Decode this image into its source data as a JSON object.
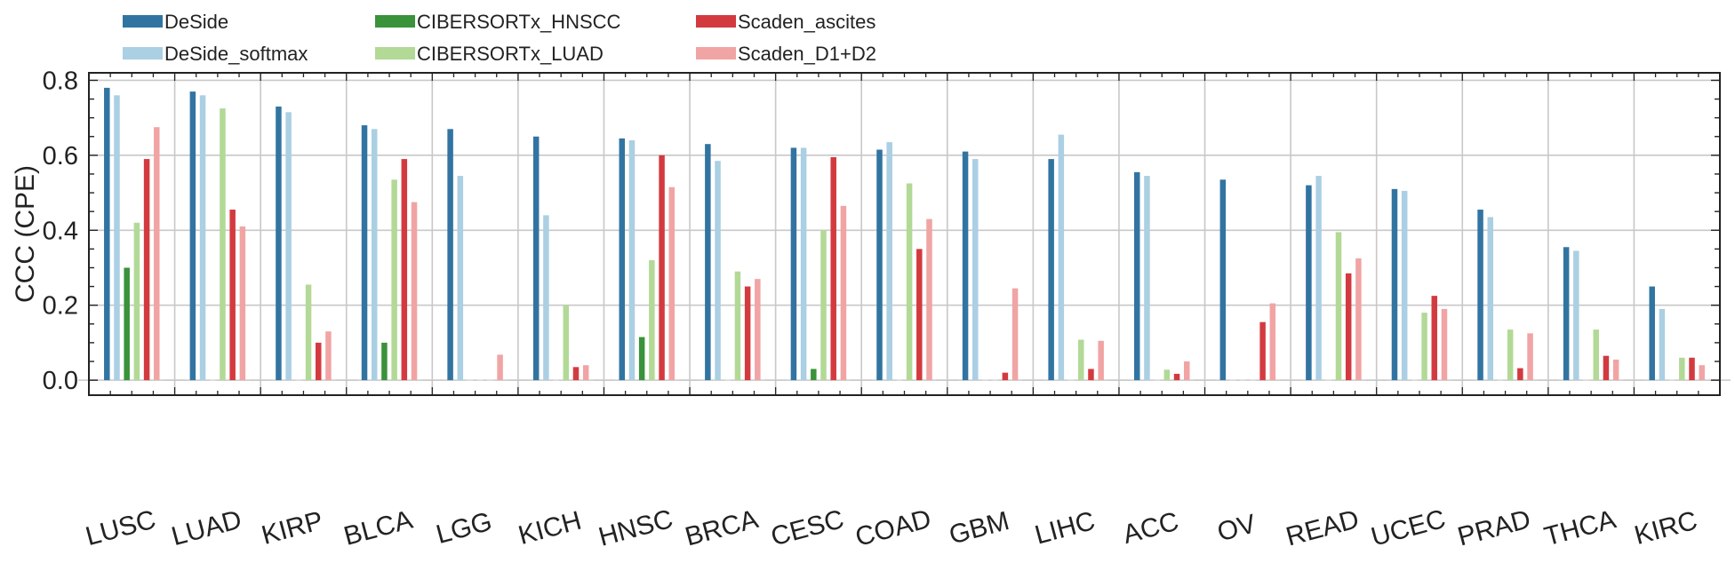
{
  "chart_data": {
    "type": "bar",
    "ylabel": "CCC (CPE)",
    "xlabel": "",
    "ylim": [
      -0.04,
      0.82
    ],
    "yticks": [
      0.0,
      0.2,
      0.4,
      0.6,
      0.8
    ],
    "ytick_labels": [
      "0.0",
      "0.2",
      "0.4",
      "0.6",
      "0.8"
    ],
    "grid": true,
    "legend_position": "top-left, outside plot",
    "categories": [
      "LUSC",
      "LUAD",
      "KIRP",
      "BLCA",
      "LGG",
      "KICH",
      "HNSC",
      "BRCA",
      "CESC",
      "COAD",
      "GBM",
      "LIHC",
      "ACC",
      "OV",
      "READ",
      "UCEC",
      "PRAD",
      "THCA",
      "KIRC"
    ],
    "series": [
      {
        "name": "DeSide",
        "color": "#3274a1",
        "values": [
          0.78,
          0.77,
          0.73,
          0.68,
          0.67,
          0.65,
          0.645,
          0.63,
          0.62,
          0.615,
          0.61,
          0.59,
          0.555,
          0.535,
          0.52,
          0.51,
          0.455,
          0.355,
          0.25
        ]
      },
      {
        "name": "DeSide_softmax",
        "color": "#abcfe3",
        "values": [
          0.76,
          0.76,
          0.715,
          0.67,
          0.545,
          0.44,
          0.64,
          0.585,
          0.62,
          0.635,
          0.59,
          0.655,
          0.545,
          0.0,
          0.545,
          0.505,
          0.435,
          0.345,
          0.19
        ]
      },
      {
        "name": "CIBERSORTx_HNSCC",
        "color": "#3a923a",
        "values": [
          0.3,
          0.0,
          0.0,
          0.1,
          0.0,
          0.0,
          0.115,
          0.0,
          0.03,
          0.0,
          0.0,
          0.0,
          0.0,
          0.0,
          0.0,
          0.0,
          0.0,
          0.0,
          0.0
        ]
      },
      {
        "name": "CIBERSORTx_LUAD",
        "color": "#b2d996",
        "values": [
          0.42,
          0.725,
          0.255,
          0.535,
          0.0,
          0.2,
          0.32,
          0.29,
          0.4,
          0.525,
          0.0,
          0.108,
          0.028,
          0.0,
          0.395,
          0.18,
          0.135,
          0.135,
          0.06
        ]
      },
      {
        "name": "Scaden_ascites",
        "color": "#d33a3f",
        "values": [
          0.59,
          0.455,
          0.1,
          0.59,
          0.0,
          0.035,
          0.6,
          0.25,
          0.595,
          0.35,
          0.02,
          0.03,
          0.017,
          0.155,
          0.285,
          0.225,
          0.032,
          0.065,
          0.06
        ]
      },
      {
        "name": "Scaden_D1+D2",
        "color": "#f1a4a4",
        "values": [
          0.675,
          0.41,
          0.13,
          0.475,
          0.068,
          0.04,
          0.515,
          0.27,
          0.465,
          0.43,
          0.245,
          0.105,
          0.05,
          0.205,
          0.325,
          0.19,
          0.125,
          0.055,
          0.04
        ]
      }
    ]
  }
}
